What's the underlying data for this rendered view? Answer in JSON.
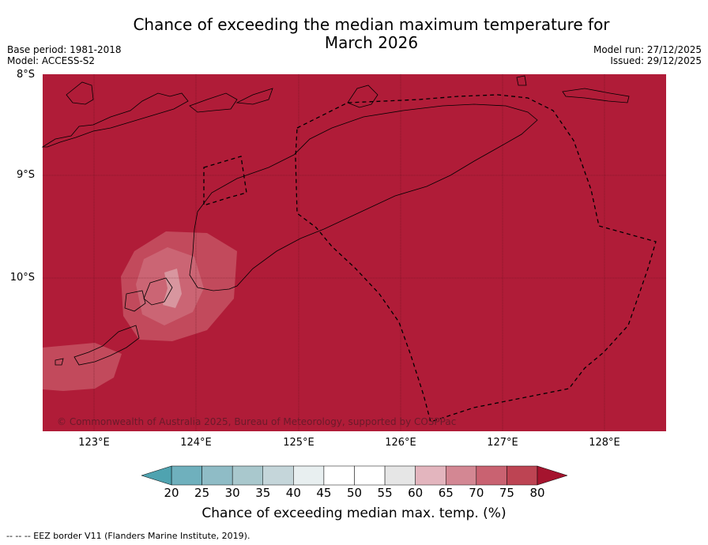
{
  "title_line1": "Chance of exceeding the median maximum temperature for",
  "title_line2": "March 2026",
  "base_period": "Base period: 1981-2018",
  "model": "Model: ACCESS-S2",
  "model_run": "Model run: 27/12/2025",
  "issued": "Issued: 29/12/2025",
  "lat_labels": [
    "8°S",
    "9°S",
    "10°S"
  ],
  "lon_labels": [
    "123°E",
    "124°E",
    "125°E",
    "126°E",
    "127°E",
    "128°E"
  ],
  "copyright": "© Commonwealth of Australia 2025, Bureau of Meteorology, supported by COSPPac",
  "colorbar": {
    "label": "Chance of exceeding median max. temp. (%)",
    "ticks": [
      "20",
      "25",
      "30",
      "35",
      "40",
      "45",
      "50",
      "55",
      "60",
      "65",
      "70",
      "75",
      "80"
    ],
    "colors": [
      "#4fa3b0",
      "#6fb0bd",
      "#8fbcc6",
      "#a9c8cd",
      "#c5d6da",
      "#e8eff0",
      "#ffffff",
      "#ffffff",
      "#e6e6e6",
      "#e3b5be",
      "#d38793",
      "#c96271",
      "#bd4453",
      "#b01c38",
      "#a5142e"
    ],
    "under_color": "#4fa3b0",
    "over_color": "#a5142e"
  },
  "map_colors": {
    "base": "#b01c38",
    "p75": "#c24a5c",
    "p70": "#cb6574",
    "p65": "#d8969f"
  },
  "footnote": "--  --  -- EEZ border V11 (Flanders Marine Institute, 2019)."
}
